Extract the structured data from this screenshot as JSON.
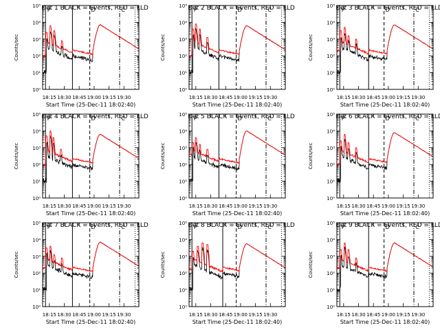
{
  "colors": {
    "events": "#000000",
    "lld": "#ff0000",
    "background": "#ffffff"
  },
  "chart_data": [
    {
      "type": "line",
      "title": "Det 1 BLACK = Events, RED = LLD",
      "xlabel": "Start Time (25-Dec-11 18:02:40)",
      "ylabel": "Counts/sec",
      "x_ticks": [
        "18:15",
        "18:30",
        "18:45",
        "19:00",
        "19:15",
        "19:30"
      ],
      "y_ticks": [
        "10⁰",
        "10¹",
        "10²",
        "10³",
        "10⁴",
        "10⁵"
      ],
      "y_scale": "log",
      "ylim": [
        1,
        100000
      ],
      "markers": [
        "P",
        "D",
        "C"
      ],
      "series": []
    },
    {
      "type": "line",
      "title": "Det 2 BLACK = Events, RED = LLD",
      "xlabel": "Start Time (25-Dec-11 18:02:40)",
      "ylabel": "Counts/sec",
      "x_ticks": [
        "18:15",
        "18:30",
        "18:45",
        "19:00",
        "19:15",
        "19:30"
      ],
      "y_ticks": [
        "10⁰",
        "10¹",
        "10²",
        "10³",
        "10⁴",
        "10⁵"
      ],
      "y_scale": "log",
      "ylim": [
        1,
        100000
      ],
      "markers": [
        "P",
        "D",
        "C"
      ],
      "series": []
    },
    {
      "type": "line",
      "title": "Det 3 BLACK = Events, RED = LLD",
      "xlabel": "Start Time (25-Dec-11 18:02:40)",
      "ylabel": "Counts/sec",
      "x_ticks": [
        "18:15",
        "18:30",
        "18:45",
        "19:00",
        "19:15",
        "19:30"
      ],
      "y_ticks": [
        "10⁰",
        "10¹",
        "10²",
        "10³",
        "10⁴",
        "10⁵"
      ],
      "y_scale": "log",
      "ylim": [
        1,
        100000
      ],
      "markers": [
        "P",
        "D",
        "C"
      ],
      "series": []
    },
    {
      "type": "line",
      "title": "Det 4 BLACK = Events, RED = LLD",
      "xlabel": "Start Time (25-Dec-11 18:02:40)",
      "ylabel": "Counts/sec",
      "x_ticks": [
        "18:15",
        "18:30",
        "18:45",
        "19:00",
        "19:15",
        "19:30"
      ],
      "y_ticks": [
        "10⁰",
        "10¹",
        "10²",
        "10³",
        "10⁴",
        "10⁵"
      ],
      "y_scale": "log",
      "ylim": [
        1,
        100000
      ],
      "markers": [
        "P",
        "D",
        "C"
      ],
      "series": []
    },
    {
      "type": "line",
      "title": "Det 5 BLACK = Events, RED = LLD",
      "xlabel": "Start Time (25-Dec-11 18:02:40)",
      "ylabel": "Counts/sec",
      "x_ticks": [
        "18:15",
        "18:30",
        "18:45",
        "19:00",
        "19:15",
        "19:30"
      ],
      "y_ticks": [
        "10⁰",
        "10¹",
        "10²",
        "10³",
        "10⁴",
        "10⁵"
      ],
      "y_scale": "log",
      "ylim": [
        1,
        100000
      ],
      "markers": [
        "P",
        "D",
        "C"
      ],
      "series": []
    },
    {
      "type": "line",
      "title": "Det 6 BLACK = Events, RED = LLD",
      "xlabel": "Start Time (25-Dec-11 18:02:40)",
      "ylabel": "Counts/sec",
      "x_ticks": [
        "18:15",
        "18:30",
        "18:45",
        "19:00",
        "19:15",
        "19:30"
      ],
      "y_ticks": [
        "10⁰",
        "10¹",
        "10²",
        "10³",
        "10⁴",
        "10⁵"
      ],
      "y_scale": "log",
      "ylim": [
        1,
        100000
      ],
      "markers": [
        "P",
        "D",
        "C"
      ],
      "series": []
    },
    {
      "type": "line",
      "title": "Det 7 BLACK = Events, RED = LLD",
      "xlabel": "Start Time (25-Dec-11 18:02:40)",
      "ylabel": "Counts/sec",
      "x_ticks": [
        "18:15",
        "18:30",
        "18:45",
        "19:00",
        "19:15",
        "19:30"
      ],
      "y_ticks": [
        "10⁰",
        "10¹",
        "10²",
        "10³",
        "10⁴",
        "10⁵"
      ],
      "y_scale": "log",
      "ylim": [
        1,
        100000
      ],
      "markers": [
        "P",
        "D",
        "C"
      ],
      "series": []
    },
    {
      "type": "line",
      "title": "Det 8 BLACK = Events, RED = LLD",
      "xlabel": "Start Time (25-Dec-11 18:02:40)",
      "ylabel": "Counts/sec",
      "x_ticks": [
        "18:15",
        "18:30",
        "18:45",
        "19:00",
        "19:15",
        "19:30"
      ],
      "y_ticks": [
        "10⁰",
        "10¹",
        "10²",
        "10³",
        "10⁴",
        "10⁵"
      ],
      "y_scale": "log",
      "ylim": [
        1,
        100000
      ],
      "markers": [
        "P",
        "D",
        "C"
      ],
      "series": []
    },
    {
      "type": "line",
      "title": "Det 9 BLACK = Events, RED = LLD",
      "xlabel": "Start Time (25-Dec-11 18:02:40)",
      "ylabel": "Counts/sec",
      "x_ticks": [
        "18:15",
        "18:30",
        "18:45",
        "19:00",
        "19:15",
        "19:30"
      ],
      "y_ticks": [
        "10⁰",
        "10¹",
        "10²",
        "10³",
        "10⁴",
        "10⁵"
      ],
      "y_scale": "log",
      "ylim": [
        1,
        100000
      ],
      "markers": [
        "P",
        "D",
        "C"
      ],
      "series": []
    }
  ]
}
